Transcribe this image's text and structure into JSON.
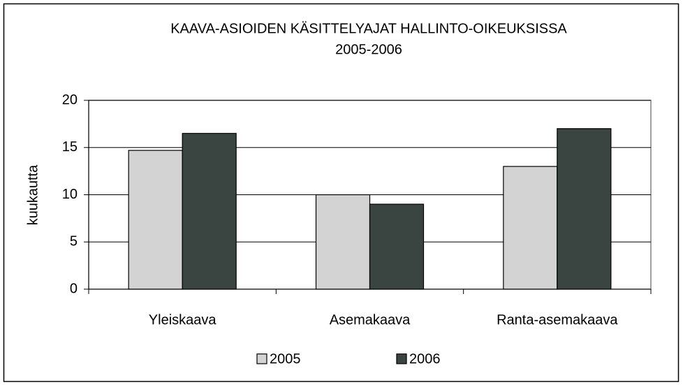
{
  "chart_data": {
    "type": "bar",
    "title": "KAAVA-ASIOIDEN KÄSITTELYAJAT HALLINTO-OIKEUKSISSA",
    "subtitle": "2005-2006",
    "y_label": "kuukautta",
    "categories": [
      "Yleiskaava",
      "Asemakaava",
      "Ranta-asemakaava"
    ],
    "series": [
      {
        "name": "2005",
        "color": "#d3d3d3",
        "values": [
          14.7,
          10.0,
          13.0
        ]
      },
      {
        "name": "2006",
        "color": "#3a4441",
        "values": [
          16.5,
          9.0,
          17.0
        ]
      }
    ],
    "ylim": [
      0,
      20
    ],
    "yticks": [
      0,
      5,
      10,
      15,
      20
    ],
    "grid": true,
    "legend": "bottom"
  }
}
